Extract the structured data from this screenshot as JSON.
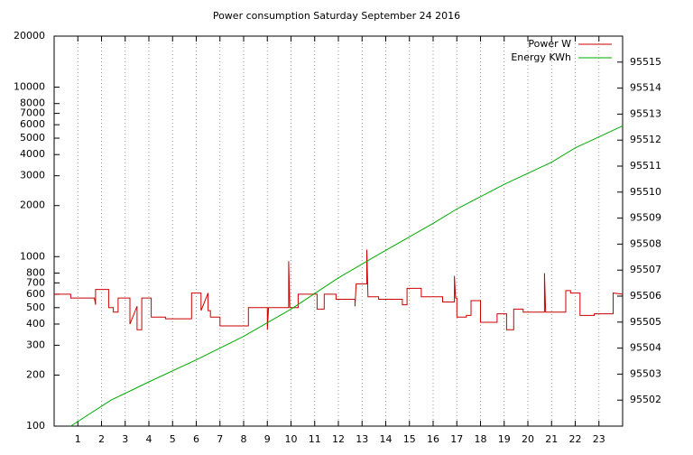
{
  "chart_data": {
    "type": "line",
    "title": "Power consumption Saturday September 24 2016",
    "xlim": [
      0,
      24
    ],
    "xticks": [
      1,
      2,
      3,
      4,
      5,
      6,
      7,
      8,
      9,
      10,
      11,
      12,
      13,
      14,
      15,
      16,
      17,
      18,
      19,
      20,
      21,
      22,
      23
    ],
    "ylim": [
      100,
      20000
    ],
    "log_y": true,
    "yticks": [
      100,
      200,
      300,
      400,
      500,
      600,
      700,
      800,
      1000,
      2000,
      3000,
      4000,
      5000,
      6000,
      7000,
      8000,
      10000,
      20000
    ],
    "y2lim": [
      95501,
      95516
    ],
    "y2ticks": [
      95502,
      95503,
      95504,
      95505,
      95506,
      95507,
      95508,
      95509,
      95510,
      95511,
      95512,
      95513,
      95514,
      95515
    ],
    "grid": "x",
    "legend": "top-right",
    "series": [
      {
        "name": "Power W",
        "color": "#cc0000",
        "axis": "y",
        "x": [
          0,
          0.7,
          0.7,
          1.7,
          1.75,
          1.75,
          1.8,
          1.8,
          2.3,
          2.3,
          2.5,
          2.5,
          2.7,
          2.7,
          3.2,
          3.2,
          3.5,
          3.5,
          3.7,
          3.7,
          4.1,
          4.1,
          4.7,
          4.7,
          5.8,
          5.8,
          6.2,
          6.2,
          6.5,
          6.5,
          6.6,
          6.6,
          7.0,
          7.0,
          8.2,
          8.2,
          9.0,
          9.0,
          9.05,
          9.9,
          9.9,
          9.95,
          10.3,
          10.3,
          11.1,
          11.1,
          11.4,
          11.4,
          11.9,
          11.9,
          12.7,
          12.7,
          12.75,
          13.2,
          13.2,
          13.25,
          13.7,
          13.7,
          14.7,
          14.7,
          14.9,
          14.9,
          15.5,
          15.5,
          16.4,
          16.4,
          16.9,
          16.9,
          16.95,
          17.0,
          17.0,
          17.4,
          17.4,
          17.6,
          17.6,
          18.0,
          18.0,
          18.7,
          18.7,
          19.1,
          19.1,
          19.4,
          19.4,
          19.8,
          19.8,
          20.7,
          20.7,
          20.75,
          21.6,
          21.6,
          21.8,
          21.8,
          22.2,
          22.2,
          22.8,
          22.8,
          23.6,
          23.6,
          24
        ],
        "values": [
          600,
          600,
          570,
          570,
          520,
          640,
          640,
          640,
          640,
          500,
          500,
          470,
          470,
          570,
          570,
          400,
          510,
          370,
          370,
          570,
          570,
          440,
          440,
          430,
          430,
          610,
          610,
          480,
          610,
          480,
          480,
          440,
          440,
          390,
          390,
          500,
          500,
          370,
          500,
          500,
          940,
          500,
          500,
          600,
          600,
          490,
          490,
          600,
          600,
          560,
          560,
          510,
          690,
          690,
          1100,
          580,
          580,
          560,
          560,
          520,
          520,
          650,
          650,
          580,
          580,
          540,
          540,
          770,
          570,
          570,
          440,
          440,
          450,
          450,
          550,
          550,
          410,
          410,
          460,
          460,
          370,
          370,
          490,
          490,
          470,
          470,
          800,
          470,
          470,
          630,
          630,
          610,
          610,
          450,
          450,
          460,
          460,
          610,
          600
        ]
      },
      {
        "name": "Energy KWh",
        "color": "#00aa00",
        "axis": "y2",
        "x": [
          0.7,
          2.4,
          4,
          6,
          8,
          10,
          12,
          13.5,
          16,
          17,
          19,
          21,
          22,
          24
        ],
        "values": [
          95501.0,
          95502.0,
          95502.7,
          95503.55,
          95504.45,
          95505.5,
          95506.7,
          95507.5,
          95508.8,
          95509.35,
          95510.3,
          95511.15,
          95511.7,
          95512.55
        ]
      }
    ]
  }
}
